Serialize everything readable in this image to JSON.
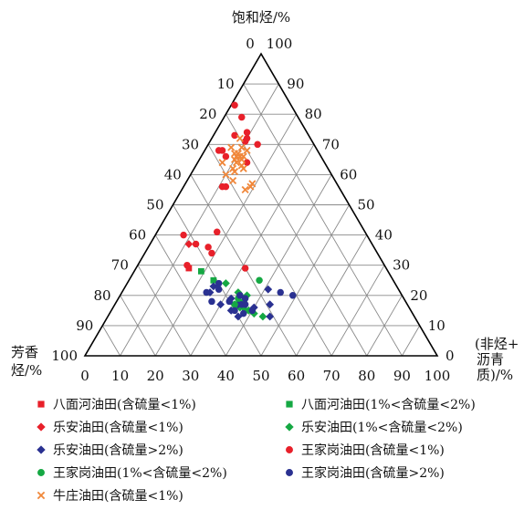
{
  "chart_data": {
    "type": "ternary",
    "axes": {
      "top": {
        "label": "饱和烃/%"
      },
      "left": {
        "label_lines": [
          "芳香",
          "烃/%"
        ]
      },
      "right": {
        "label_lines": [
          "(非烃+",
          "沥青",
          "质)/%"
        ]
      }
    },
    "ticks": {
      "saturate_left_edge": [
        "0",
        "10",
        "20",
        "30",
        "40",
        "50",
        "60",
        "70",
        "80",
        "90",
        "100"
      ],
      "resin_right_edge": [
        "100",
        "90",
        "80",
        "70",
        "60",
        "50",
        "40",
        "30",
        "20",
        "10",
        "0"
      ],
      "aromatic_bottom": [
        "0",
        "10",
        "20",
        "30",
        "40",
        "50",
        "60",
        "70",
        "80",
        "90",
        "100"
      ]
    },
    "series": [
      {
        "name": "八面河油田(含硫量<1%)",
        "marker": "square",
        "color": "#e8202a",
        "points": [
          [
            29,
            56,
            15
          ]
        ]
      },
      {
        "name": "八面河油田(1%<含硫量<2%)",
        "marker": "square",
        "color": "#15a843",
        "points": [
          [
            28,
            53,
            19
          ],
          [
            25,
            51,
            24
          ]
        ]
      },
      {
        "name": "乐安油田(含硫量<1%)",
        "marker": "diamond",
        "color": "#e8202a",
        "points": [
          [
            37,
            52,
            11
          ]
        ]
      },
      {
        "name": "乐安油田(1%<含硫量<2%)",
        "marker": "diamond",
        "color": "#15a843",
        "points": [
          [
            24,
            48,
            28
          ],
          [
            21,
            46,
            33
          ],
          [
            18,
            46,
            36
          ],
          [
            15,
            46,
            39
          ],
          [
            18,
            47,
            35
          ],
          [
            16,
            48,
            36
          ],
          [
            14,
            45,
            41
          ],
          [
            17,
            49,
            34
          ],
          [
            20,
            44,
            36
          ],
          [
            13,
            43,
            44
          ]
        ]
      },
      {
        "name": "乐安油田(含硫量>2%)",
        "marker": "diamond",
        "color": "#2a3191",
        "points": [
          [
            23,
            52,
            25
          ],
          [
            21,
            54,
            25
          ],
          [
            17,
            53,
            30
          ],
          [
            15,
            51,
            34
          ],
          [
            13,
            50,
            37
          ],
          [
            16,
            44,
            40
          ],
          [
            19,
            49,
            32
          ],
          [
            22,
            37,
            41
          ],
          [
            17,
            39,
            44
          ],
          [
            13,
            41,
            46
          ],
          [
            17,
            48,
            35
          ]
        ]
      },
      {
        "name": "王家岗油田(含硫量<1%)",
        "marker": "circle",
        "color": "#e8202a",
        "points": [
          [
            83,
            16,
            1
          ],
          [
            79,
            16,
            5
          ],
          [
            74,
            17,
            9
          ],
          [
            72,
            18,
            10
          ],
          [
            71,
            19,
            10
          ],
          [
            73,
            21,
            6
          ],
          [
            70,
            16,
            14
          ],
          [
            66,
            27,
            7
          ],
          [
            68,
            27,
            5
          ],
          [
            68,
            28,
            4
          ],
          [
            64,
            22,
            14
          ],
          [
            56,
            32,
            12
          ],
          [
            56,
            33,
            11
          ],
          [
            40,
            52,
            8
          ],
          [
            37,
            50,
            13
          ],
          [
            36,
            47,
            17
          ],
          [
            34,
            47,
            19
          ],
          [
            30,
            56,
            14
          ],
          [
            29,
            40,
            31
          ],
          [
            41,
            42,
            17
          ]
        ]
      },
      {
        "name": "王家岗油田(1%<含硫量<2%)",
        "marker": "circle",
        "color": "#15a843",
        "points": [
          [
            25,
            38,
            37
          ],
          [
            20,
            46,
            34
          ],
          [
            17,
            49,
            34
          ],
          [
            19,
            47,
            34
          ],
          [
            15,
            47,
            38
          ]
        ]
      },
      {
        "name": "王家岗油田(含硫量>2%)",
        "marker": "circle",
        "color": "#2a3191",
        "points": [
          [
            20,
            46,
            34
          ],
          [
            17,
            47,
            36
          ],
          [
            15,
            50,
            35
          ],
          [
            17,
            46,
            37
          ],
          [
            21,
            55,
            24
          ],
          [
            14,
            48,
            38
          ],
          [
            24,
            50,
            26
          ],
          [
            18,
            55,
            27
          ],
          [
            22,
            51,
            27
          ],
          [
            18,
            50,
            32
          ],
          [
            19,
            45,
            36
          ],
          [
            15,
            45,
            40
          ],
          [
            21,
            34,
            45
          ],
          [
            20,
            31,
            49
          ]
        ]
      },
      {
        "name": "牛庄油田(含硫量<1%)",
        "marker": "cross",
        "color": "#f0873a",
        "points": [
          [
            72,
            20,
            8
          ],
          [
            69,
            21,
            10
          ],
          [
            67,
            23,
            10
          ],
          [
            66,
            24,
            10
          ],
          [
            65,
            25,
            10
          ],
          [
            64,
            25,
            11
          ],
          [
            67,
            24,
            9
          ],
          [
            66,
            22,
            12
          ],
          [
            65,
            23,
            12
          ],
          [
            63,
            24,
            13
          ],
          [
            62,
            27,
            11
          ],
          [
            60,
            30,
            10
          ],
          [
            66,
            23,
            11
          ],
          [
            69,
            24,
            7
          ],
          [
            64,
            29,
            7
          ],
          [
            61,
            27,
            12
          ],
          [
            58,
            29,
            13
          ],
          [
            57,
            24,
            19
          ],
          [
            55,
            27,
            18
          ],
          [
            56,
            25,
            19
          ],
          [
            68,
            20,
            12
          ],
          [
            62,
            24,
            14
          ]
        ]
      }
    ]
  },
  "legend": [
    {
      "label": "八面河油田(含硫量<1%)",
      "marker": "square",
      "color": "#e8202a"
    },
    {
      "label": "八面河油田(1%<含硫量<2%)",
      "marker": "square",
      "color": "#15a843"
    },
    {
      "label": "乐安油田(含硫量<1%)",
      "marker": "diamond",
      "color": "#e8202a"
    },
    {
      "label": "乐安油田(1%<含硫量<2%)",
      "marker": "diamond",
      "color": "#15a843"
    },
    {
      "label": "乐安油田(含硫量>2%)",
      "marker": "diamond",
      "color": "#2a3191"
    },
    {
      "label": "王家岗油田(含硫量<1%)",
      "marker": "circle",
      "color": "#e8202a"
    },
    {
      "label": "王家岗油田(1%<含硫量<2%)",
      "marker": "circle",
      "color": "#15a843"
    },
    {
      "label": "王家岗油田(含硫量>2%)",
      "marker": "circle",
      "color": "#2a3191"
    },
    {
      "label": "牛庄油田(含硫量<1%)",
      "marker": "cross",
      "color": "#f0873a"
    }
  ]
}
